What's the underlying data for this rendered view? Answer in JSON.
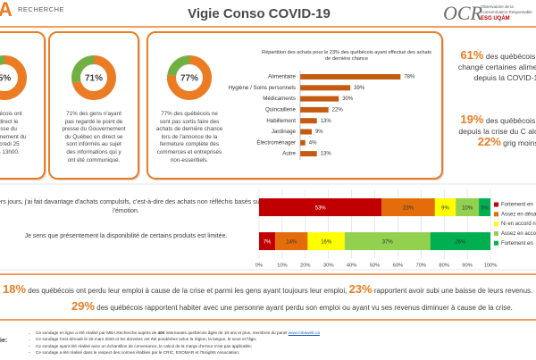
{
  "header": {
    "logo_letter": "A",
    "logo_text": "RECHERCHE",
    "title": "Vigie Conso COVID-19",
    "org_logo": "OCR",
    "org_name": "Observatoire de la Consommation Responsable",
    "org_affiliation": "ESG UQÀM"
  },
  "panels": [
    {
      "donut_label": "5%",
      "lines": [
        "québécois ont",
        "en direct le",
        "presse du",
        "gouvernement du",
        "mercredi 25",
        "20 à 13h00."
      ]
    },
    {
      "donut": {
        "value": 71,
        "label": "71%"
      },
      "lines": [
        "71% des gens n'ayant",
        "pas regardé le point de",
        "presse du Gouvernement",
        "du Québec en direct se",
        "sont informés au sujet",
        "des informations qui y",
        "ont été communiqué."
      ]
    },
    {
      "donut": {
        "value": 77,
        "label": "77%"
      },
      "lines": [
        "77% des québécois ne",
        "sont pas sortis faire des",
        "achats de dernière chance",
        "lors de l'annonce de la",
        "fermeture complète des",
        "commerces et entreprises",
        "non-essentiels."
      ]
    }
  ],
  "purchase_chart": {
    "type": "bar",
    "orientation": "horizontal",
    "title": "Répartition des achats pour le 23% des québécois ayant effectué des achats de dernière chance",
    "categories": [
      "Alimentaire",
      "Hygiène / Soins personnels",
      "Médicaments",
      "Quincaillerie",
      "Habillement",
      "Jardinage",
      "Électroménager",
      "Autre"
    ],
    "values": [
      78,
      39,
      30,
      22,
      13,
      9,
      4,
      13
    ],
    "value_labels": [
      "78%",
      "39%",
      "30%",
      "22%",
      "13%",
      "9%",
      "4%",
      "13%"
    ],
    "color": "#c55a11",
    "xlim": [
      0,
      100
    ]
  },
  "right_panel": [
    [
      {
        "pct": "61%"
      },
      {
        "text": " des québécois i avoir changé certaines alimentaires depuis la COVID-19."
      }
    ],
    [
      {
        "pct": "19%"
      },
      {
        "text": " des québécois g plus depuis la crise du C alors que "
      },
      {
        "pct": "22%"
      },
      {
        "text": " grig moins."
      }
    ]
  ],
  "agreement_chart": {
    "type": "bar",
    "orientation": "horizontal",
    "stacked": true,
    "categories": [
      "rniers jours, j'ai fait davantage d'achats compulsifs, c'est-à-dire des achats non réfléchis basés sur l'émotion.",
      "Je sens que présentement la disponibilité de certains produits est limitée."
    ],
    "series": [
      {
        "name": "Fortement en",
        "color": "#c00000",
        "values": [
          53,
          7
        ],
        "value_labels": [
          "53%",
          "7%"
        ]
      },
      {
        "name": "Assez en désa",
        "color": "#e46c0a",
        "values": [
          23,
          14
        ],
        "value_labels": [
          "23%",
          "14%"
        ]
      },
      {
        "name": "Ni en accord ni",
        "color": "#ffff00",
        "values": [
          9,
          16
        ],
        "value_labels": [
          "9%",
          "16%"
        ]
      },
      {
        "name": "Assez en accor",
        "color": "#92d050",
        "values": [
          10,
          37
        ],
        "value_labels": [
          "10%",
          "37%"
        ]
      },
      {
        "name": "Fortement en",
        "color": "#00b050",
        "values": [
          5,
          26
        ],
        "value_labels": [
          "5%",
          "26%"
        ]
      }
    ],
    "xlim": [
      0,
      100
    ],
    "xticks": [
      {
        "value": 0,
        "label": "0%"
      },
      {
        "value": 10,
        "label": "10%"
      },
      {
        "value": 20,
        "label": "20%"
      },
      {
        "value": 30,
        "label": "30%"
      },
      {
        "value": 40,
        "label": "40%"
      },
      {
        "value": 50,
        "label": "50%"
      },
      {
        "value": 60,
        "label": "60%"
      },
      {
        "value": 70,
        "label": "70%"
      },
      {
        "value": 80,
        "label": "80%"
      },
      {
        "value": 90,
        "label": "90%"
      },
      {
        "value": 100,
        "label": "100%"
      }
    ],
    "grid": true,
    "legend": "right"
  },
  "findings": [
    [
      {
        "pct": "18%"
      },
      {
        "text": " des québécois ont perdu leur emploi à cause de la crise et parmi les gens ayant toujours leur emploi, "
      },
      {
        "pct": "23%"
      },
      {
        "text": " rapportent avoir subi une baisse de leurs revenus."
      }
    ],
    [
      {
        "pct": "29%"
      },
      {
        "text": " des québécois rapportent habiter avec une personne ayant perdu son emploi ou ayant vu ses revenus diminuer à cause de la crise."
      }
    ]
  ],
  "footer": {
    "label": "ie:",
    "notes": [
      [
        {
          "text": "Ce sondage en ligne a été réalisé par MBA Recherche auprès de "
        },
        {
          "bold": "400"
        },
        {
          "text": " internautes québécois âgés de 18 ans et plus, membres du panel "
        },
        {
          "link": "www.mbaweb.ca"
        }
      ],
      [
        {
          "text": "Ce sondage s'est déroulé le 25 mars 2020 et les données ont été pondérées selon la région, la langue, le sexe et l'âge;"
        }
      ],
      [
        {
          "text": "Ce sondage ayant été réalisé avec un échantillon de convenance, le calcul de la marge d'erreur n'est pas applicable;"
        }
      ],
      [
        {
          "text": "Ce sondage a été réalisé dans le respect des normes établies par le CRIC, ESOMAR et l'Insights Association;"
        }
      ]
    ]
  }
}
